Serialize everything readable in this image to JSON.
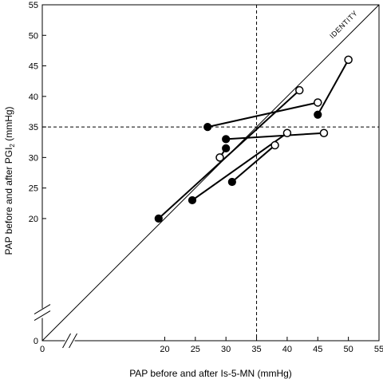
{
  "chart_data": {
    "type": "scatter",
    "title": "",
    "xlabel": "PAP before and after Is-5-MN (mmHg)",
    "ylabel": "PAP before and after PGI",
    "ylabel_subscript": "2",
    "ylabel_suffix": " (mmHg)",
    "xlim": [
      0,
      55
    ],
    "ylim": [
      0,
      55
    ],
    "xticks": [
      0,
      20,
      25,
      30,
      35,
      40,
      45,
      50,
      55
    ],
    "yticks": [
      0,
      20,
      25,
      30,
      35,
      40,
      45,
      50,
      55
    ],
    "axis_break": true,
    "reference_lines": {
      "x": 35,
      "y": 35,
      "style": "dashed"
    },
    "identity_line": {
      "label": "IDENTITY",
      "from": [
        0,
        0
      ],
      "to": [
        55,
        55
      ]
    },
    "legend": "none",
    "grid": false,
    "marker_legend": {
      "filled": "before",
      "open": "after"
    },
    "pairs": [
      {
        "before": [
          19,
          20
        ],
        "after": [
          42,
          41
        ]
      },
      {
        "before": [
          27,
          35
        ],
        "after": [
          45,
          39
        ]
      },
      {
        "before": [
          45,
          37
        ],
        "after": [
          50,
          46
        ]
      },
      {
        "before": [
          30,
          33
        ],
        "after": [
          46,
          34
        ]
      },
      {
        "before": [
          30,
          31.5
        ],
        "after": [
          29,
          30
        ]
      },
      {
        "before": [
          24.5,
          23
        ],
        "after": [
          40,
          34
        ]
      },
      {
        "before": [
          31,
          26
        ],
        "after": [
          38,
          32
        ]
      }
    ]
  }
}
